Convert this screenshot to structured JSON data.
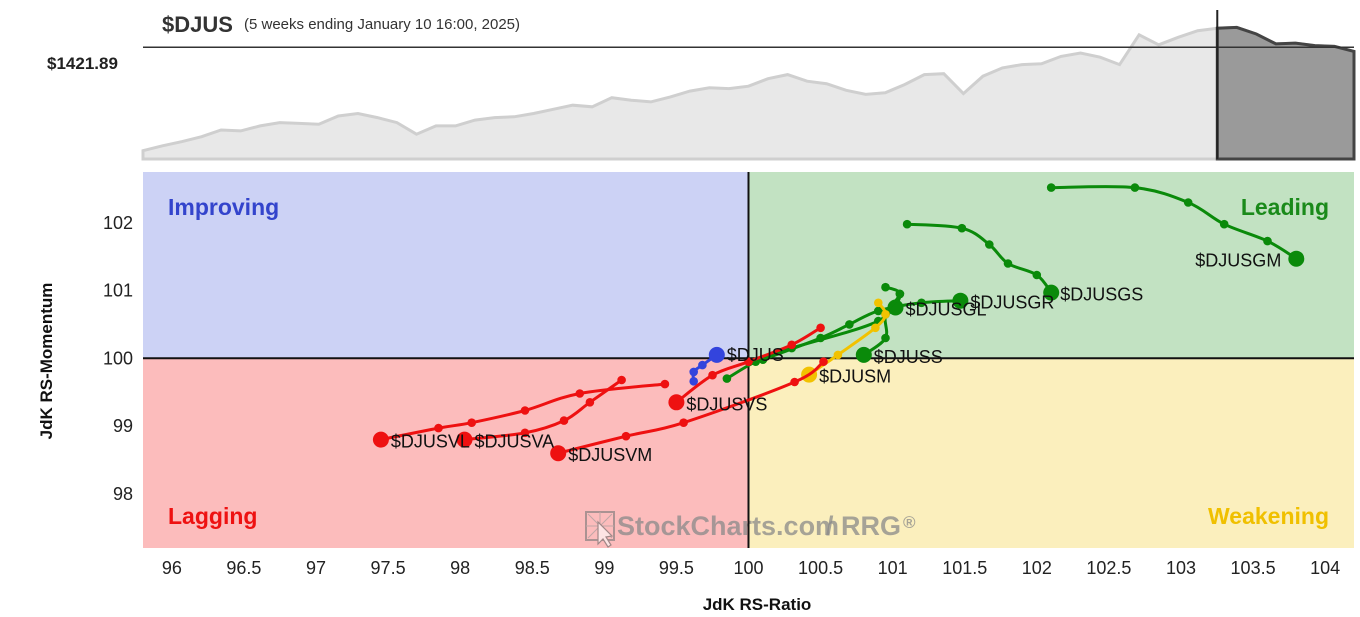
{
  "header": {
    "symbol": "$DJUS",
    "subtitle": "(5 weeks ending January 10 16:00, 2025)",
    "price_label": "$1421.89"
  },
  "quadrants": {
    "improving": {
      "label": "Improving",
      "color": "#3344cc",
      "bg": "#ccd2f5"
    },
    "leading": {
      "label": "Leading",
      "color": "#1a8a1a",
      "bg": "#c2e2c2"
    },
    "weakening": {
      "label": "Weakening",
      "color": "#f0c000",
      "bg": "#fbefbd"
    },
    "lagging": {
      "label": "Lagging",
      "color": "#ee1111",
      "bg": "#fcbcbc"
    }
  },
  "watermark": {
    "brand": "StockCharts.com",
    "suffix": "/ RRG",
    "reg": "®"
  },
  "chart_data": [
    {
      "type": "area",
      "role": "price-history",
      "symbol": "$DJUS",
      "last_value": 1421.89,
      "values": [
        0.1,
        0.16,
        0.21,
        0.27,
        0.35,
        0.34,
        0.4,
        0.44,
        0.43,
        0.42,
        0.52,
        0.55,
        0.5,
        0.44,
        0.3,
        0.4,
        0.4,
        0.47,
        0.5,
        0.51,
        0.55,
        0.6,
        0.65,
        0.63,
        0.74,
        0.71,
        0.69,
        0.75,
        0.82,
        0.86,
        0.85,
        0.88,
        0.97,
        1.02,
        0.94,
        0.91,
        0.83,
        0.78,
        0.8,
        0.9,
        1.02,
        1.03,
        0.79,
        1.0,
        1.1,
        1.14,
        1.15,
        1.24,
        1.28,
        1.23,
        1.14,
        1.5,
        1.38,
        1.47,
        1.55,
        1.58,
        1.59,
        1.51,
        1.39,
        1.4,
        1.37,
        1.36,
        1.3
      ],
      "reference_value": 1.35,
      "highlight_from_index": 55
    },
    {
      "type": "scatter",
      "role": "relative-rotation-graph",
      "xlabel": "JdK RS-Ratio",
      "ylabel": "JdK RS-Momentum",
      "xlim": [
        95.8,
        104.2
      ],
      "ylim": [
        97.2,
        102.75
      ],
      "xticks": [
        "96",
        "96.5",
        "97",
        "97.5",
        "98",
        "98.5",
        "99",
        "99.5",
        "100",
        "100.5",
        "101",
        "101.5",
        "102",
        "102.5",
        "103",
        "103.5",
        "104"
      ],
      "yticks": [
        "98",
        "99",
        "100",
        "101",
        "102"
      ],
      "center": [
        100,
        100
      ],
      "series": [
        {
          "name": "$DJUSGM",
          "color": "#0a8a0a",
          "points": [
            [
              102.1,
              102.52
            ],
            [
              102.68,
              102.52
            ],
            [
              103.05,
              102.3
            ],
            [
              103.3,
              101.98
            ],
            [
              103.6,
              101.73
            ],
            [
              103.8,
              101.47
            ]
          ]
        },
        {
          "name": "$DJUSGS",
          "color": "#0a8a0a",
          "points": [
            [
              101.1,
              101.98
            ],
            [
              101.48,
              101.92
            ],
            [
              101.67,
              101.68
            ],
            [
              101.8,
              101.4
            ],
            [
              102.0,
              101.23
            ],
            [
              102.1,
              100.97
            ]
          ]
        },
        {
          "name": "$DJUSGR",
          "color": "#0a8a0a",
          "points": [
            [
              100.1,
              99.98
            ],
            [
              100.5,
              100.3
            ],
            [
              100.7,
              100.5
            ],
            [
              100.9,
              100.7
            ],
            [
              101.2,
              100.82
            ],
            [
              101.47,
              100.85
            ]
          ]
        },
        {
          "name": "$DJUSGL",
          "color": "#0a8a0a",
          "points": [
            [
              99.85,
              99.7
            ],
            [
              100.05,
              99.95
            ],
            [
              100.3,
              100.15
            ],
            [
              100.9,
              100.55
            ],
            [
              101.05,
              100.95
            ],
            [
              101.02,
              100.75
            ]
          ]
        },
        {
          "name": "$DJUSS",
          "color": "#0a8a0a",
          "points": [
            [
              100.95,
              101.05
            ],
            [
              101.05,
              100.95
            ],
            [
              100.95,
              100.65
            ],
            [
              100.95,
              100.3
            ],
            [
              100.8,
              100.05
            ]
          ]
        },
        {
          "name": "$DJUSM",
          "color": "#f2c200",
          "points": [
            [
              100.9,
              100.82
            ],
            [
              100.95,
              100.65
            ],
            [
              100.88,
              100.45
            ],
            [
              100.62,
              100.05
            ],
            [
              100.42,
              99.76
            ]
          ]
        },
        {
          "name": "$DJUS",
          "color": "#3344dd",
          "points": [
            [
              99.62,
              99.66
            ],
            [
              99.62,
              99.8
            ],
            [
              99.68,
              99.9
            ],
            [
              99.78,
              100.05
            ]
          ]
        },
        {
          "name": "$DJUSVS",
          "color": "#ee1111",
          "points": [
            [
              100.5,
              100.45
            ],
            [
              100.3,
              100.2
            ],
            [
              100.0,
              99.95
            ],
            [
              99.75,
              99.75
            ],
            [
              99.5,
              99.35
            ]
          ]
        },
        {
          "name": "$DJUSVM",
          "color": "#ee1111",
          "points": [
            [
              100.52,
              99.95
            ],
            [
              100.32,
              99.65
            ],
            [
              99.55,
              99.05
            ],
            [
              99.15,
              98.85
            ],
            [
              98.68,
              98.6
            ]
          ]
        },
        {
          "name": "$DJUSVA",
          "color": "#ee1111",
          "points": [
            [
              99.12,
              99.68
            ],
            [
              98.9,
              99.35
            ],
            [
              98.72,
              99.08
            ],
            [
              98.45,
              98.9
            ],
            [
              98.03,
              98.8
            ]
          ]
        },
        {
          "name": "$DJUSVL",
          "color": "#ee1111",
          "points": [
            [
              99.42,
              99.62
            ],
            [
              98.83,
              99.48
            ],
            [
              98.45,
              99.23
            ],
            [
              98.08,
              99.05
            ],
            [
              97.85,
              98.97
            ],
            [
              97.45,
              98.8
            ]
          ]
        }
      ]
    }
  ]
}
